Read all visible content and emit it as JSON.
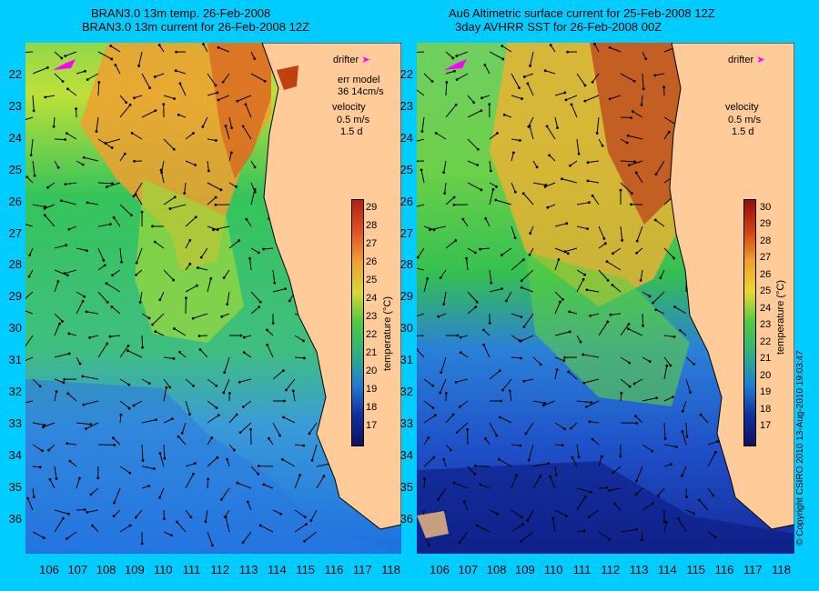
{
  "left_panel": {
    "title_line1": "BRAN3.0 13m temp. 26-Feb-2008",
    "title_line2": "BRAN3.0 13m current for 26-Feb-2008 12Z",
    "legend": {
      "drifter": "drifter",
      "err_model_label": "err model",
      "err_model_value": "36 14cm/s",
      "velocity": "velocity",
      "velocity_scale": "0.5 m/s",
      "duration": "1.5 d"
    },
    "colorbar": {
      "ticks": [
        "17",
        "18",
        "19",
        "20",
        "21",
        "22",
        "23",
        "24",
        "25",
        "26",
        "27",
        "28",
        "29"
      ],
      "label": "temperature (°C)"
    }
  },
  "right_panel": {
    "title_line1": "Au6 Altimetric surface current for 25-Feb-2008 12Z",
    "title_line2": "3day AVHRR SST for 26-Feb-2008 00Z",
    "legend": {
      "drifter": "drifter",
      "velocity": "velocity",
      "velocity_scale": "0.5 m/s",
      "duration": "1.5 d"
    },
    "colorbar": {
      "ticks": [
        "17",
        "18",
        "19",
        "20",
        "21",
        "22",
        "23",
        "24",
        "25",
        "26",
        "27",
        "28",
        "29",
        "30"
      ],
      "label": "temperature (°C)"
    }
  },
  "lat_labels": [
    "22",
    "23",
    "24",
    "25",
    "26",
    "27",
    "28",
    "29",
    "30",
    "31",
    "32",
    "33",
    "34",
    "35",
    "36"
  ],
  "lon_labels": [
    "106",
    "107",
    "108",
    "109",
    "110",
    "111",
    "112",
    "113",
    "114",
    "115",
    "116",
    "117",
    "118"
  ],
  "copyright": "© Copyright CSIRO 2010   13-Aug-2010 19:03:47",
  "colors": {
    "background": "#00ccff",
    "land": "#ffcc99",
    "drifter": "#ff00ff",
    "contour": "#40e0d0"
  }
}
